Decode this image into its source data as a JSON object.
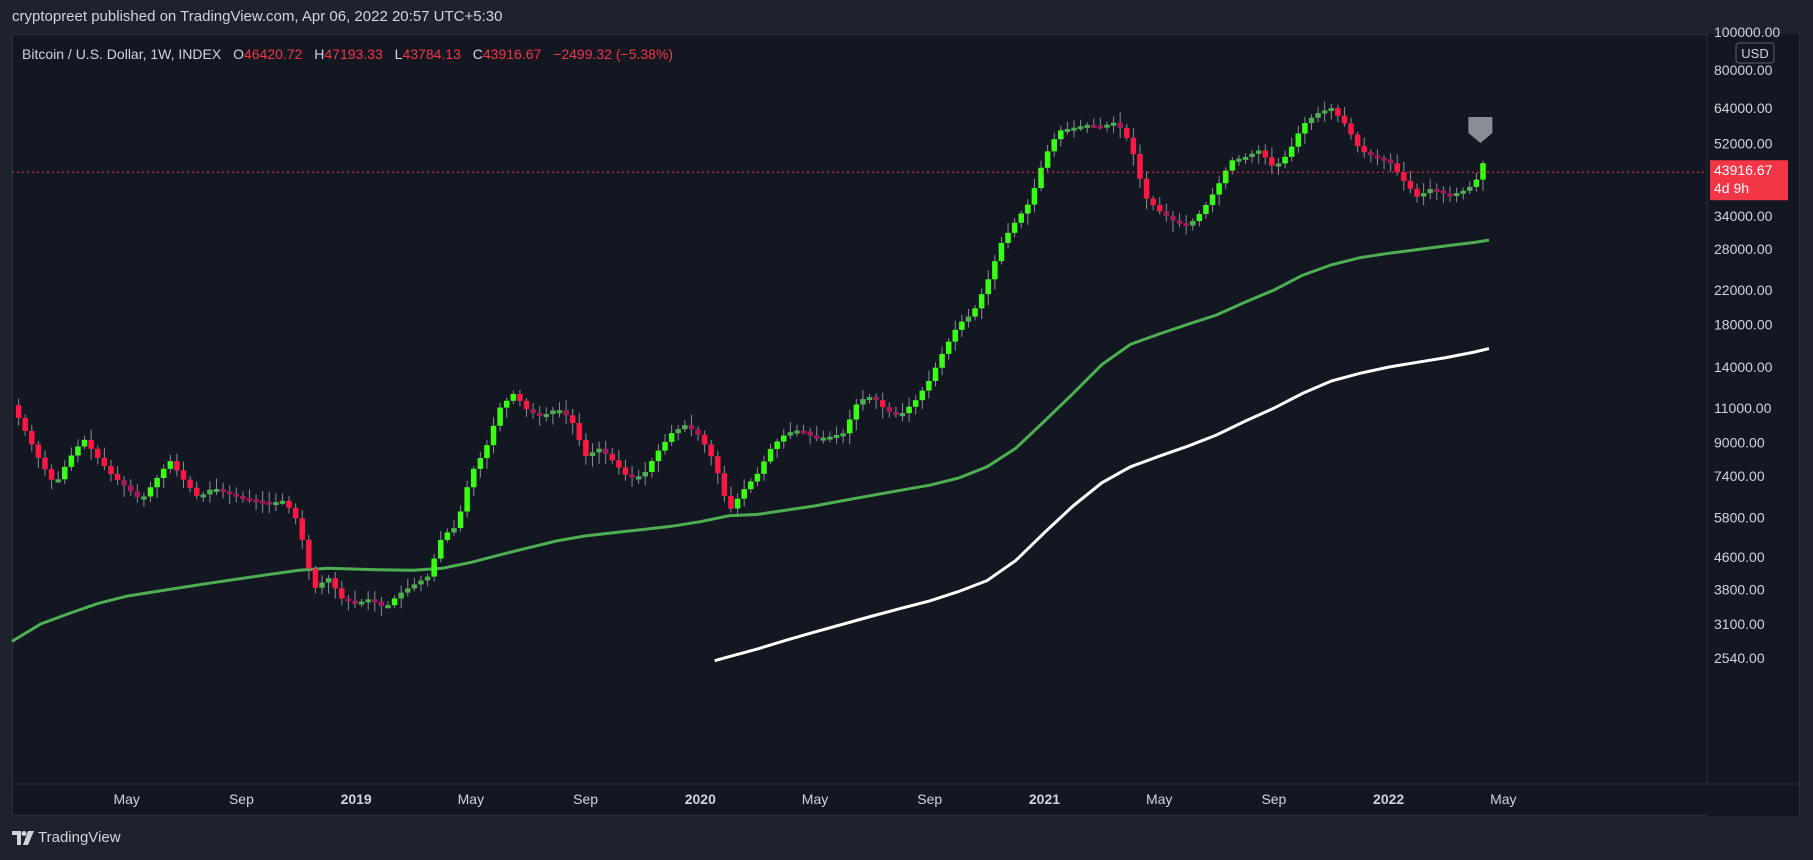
{
  "header": {
    "publish_text": "cryptopreet published on TradingView.com, Apr 06, 2022 20:57 UTC+5:30"
  },
  "legend": {
    "symbol": "Bitcoin / U.S. Dollar, 1W, INDEX",
    "open_label": "O",
    "open_value": "46420.72",
    "high_label": "H",
    "high_value": "47193.33",
    "low_label": "L",
    "low_value": "43784.13",
    "close_label": "C",
    "close_value": "43916.67",
    "change": "−2499.32 (−5.38%)"
  },
  "footer": {
    "brand": "TradingView"
  },
  "colors": {
    "background": "#131722",
    "up": "#4caf50",
    "up_bright": "#39ff14",
    "down": "#ff1744",
    "down_dim": "#a3195b",
    "ma_green": "#4caf50",
    "ma_white": "#ffffff",
    "price_label": "#f23645"
  },
  "chart_data": {
    "type": "candlestick",
    "title": "Bitcoin / U.S. Dollar, 1W, INDEX",
    "y_scale": "log",
    "currency": "USD",
    "y_ticks": [
      2540,
      3100,
      3800,
      4600,
      5800,
      7400,
      9000,
      11000,
      14000,
      18000,
      22000,
      28000,
      34000,
      52000,
      64000,
      80000,
      100000
    ],
    "y_tick_labels": [
      "2540.00",
      "3100.00",
      "3800.00",
      "4600.00",
      "5800.00",
      "7400.00",
      "9000.00",
      "11000.00",
      "14000.00",
      "18000.00",
      "22000.00",
      "28000.00",
      "34000.00",
      "52000.00",
      "64000.00",
      "80000.00",
      "100000.00"
    ],
    "x_tick_labels": [
      {
        "label": "May",
        "t": 4.0,
        "bold": false
      },
      {
        "label": "Sep",
        "t": 8.0,
        "bold": false
      },
      {
        "label": "2019",
        "t": 12.0,
        "bold": true
      },
      {
        "label": "May",
        "t": 16.0,
        "bold": false
      },
      {
        "label": "Sep",
        "t": 20.0,
        "bold": false
      },
      {
        "label": "2020",
        "t": 24.0,
        "bold": true
      },
      {
        "label": "May",
        "t": 28.0,
        "bold": false
      },
      {
        "label": "Sep",
        "t": 32.0,
        "bold": false
      },
      {
        "label": "2021",
        "t": 36.0,
        "bold": true
      },
      {
        "label": "May",
        "t": 40.0,
        "bold": false
      },
      {
        "label": "Sep",
        "t": 44.0,
        "bold": false
      },
      {
        "label": "2022",
        "t": 48.0,
        "bold": true
      },
      {
        "label": "May",
        "t": 52.0,
        "bold": false
      }
    ],
    "last_price": "43916.67",
    "countdown": "4d 9h",
    "price_path": [
      [
        0.0,
        11200
      ],
      [
        0.5,
        9500
      ],
      [
        1.0,
        8000
      ],
      [
        1.5,
        7000
      ],
      [
        2.0,
        8200
      ],
      [
        2.5,
        9200
      ],
      [
        3.0,
        8200
      ],
      [
        3.5,
        7400
      ],
      [
        4.0,
        6900
      ],
      [
        4.5,
        6400
      ],
      [
        5.0,
        7200
      ],
      [
        5.5,
        8100
      ],
      [
        6.0,
        7200
      ],
      [
        6.5,
        6500
      ],
      [
        7.0,
        6900
      ],
      [
        8.0,
        6500
      ],
      [
        9.0,
        6300
      ],
      [
        9.5,
        6400
      ],
      [
        10.0,
        5600
      ],
      [
        10.3,
        4400
      ],
      [
        10.6,
        3800
      ],
      [
        11.0,
        4100
      ],
      [
        11.5,
        3600
      ],
      [
        12.0,
        3500
      ],
      [
        12.5,
        3600
      ],
      [
        13.0,
        3400
      ],
      [
        13.5,
        3700
      ],
      [
        14.0,
        3900
      ],
      [
        14.5,
        4100
      ],
      [
        15.0,
        5200
      ],
      [
        15.5,
        5500
      ],
      [
        16.0,
        7500
      ],
      [
        16.5,
        8600
      ],
      [
        17.0,
        11000
      ],
      [
        17.5,
        12000
      ],
      [
        18.0,
        10800
      ],
      [
        18.5,
        10500
      ],
      [
        19.0,
        11000
      ],
      [
        19.5,
        10300
      ],
      [
        20.0,
        8300
      ],
      [
        20.5,
        8700
      ],
      [
        21.0,
        8000
      ],
      [
        21.5,
        7300
      ],
      [
        22.0,
        7400
      ],
      [
        22.5,
        8500
      ],
      [
        23.0,
        9500
      ],
      [
        23.5,
        10000
      ],
      [
        24.0,
        9300
      ],
      [
        24.5,
        8000
      ],
      [
        25.0,
        6000
      ],
      [
        25.5,
        6800
      ],
      [
        26.0,
        7500
      ],
      [
        26.5,
        8800
      ],
      [
        27.0,
        9500
      ],
      [
        27.5,
        9700
      ],
      [
        28.0,
        9200
      ],
      [
        28.5,
        9300
      ],
      [
        29.0,
        9500
      ],
      [
        29.5,
        11500
      ],
      [
        30.0,
        11800
      ],
      [
        30.5,
        10800
      ],
      [
        31.0,
        10600
      ],
      [
        31.5,
        11500
      ],
      [
        32.0,
        13000
      ],
      [
        32.5,
        15500
      ],
      [
        33.0,
        18000
      ],
      [
        33.5,
        19200
      ],
      [
        34.0,
        23000
      ],
      [
        34.5,
        29000
      ],
      [
        35.0,
        33000
      ],
      [
        35.5,
        37000
      ],
      [
        36.0,
        48000
      ],
      [
        36.5,
        56000
      ],
      [
        37.0,
        57000
      ],
      [
        37.5,
        58000
      ],
      [
        38.0,
        57500
      ],
      [
        38.5,
        59000
      ],
      [
        39.0,
        52000
      ],
      [
        39.5,
        38000
      ],
      [
        40.0,
        35000
      ],
      [
        40.5,
        33000
      ],
      [
        41.0,
        32000
      ],
      [
        41.5,
        35000
      ],
      [
        42.0,
        40000
      ],
      [
        42.5,
        47000
      ],
      [
        43.0,
        48000
      ],
      [
        43.5,
        50000
      ],
      [
        44.0,
        45000
      ],
      [
        44.5,
        49000
      ],
      [
        45.0,
        58000
      ],
      [
        45.5,
        62000
      ],
      [
        46.0,
        64000
      ],
      [
        46.5,
        58000
      ],
      [
        47.0,
        50000
      ],
      [
        47.5,
        48000
      ],
      [
        48.0,
        47000
      ],
      [
        48.5,
        42000
      ],
      [
        49.0,
        38000
      ],
      [
        49.5,
        40000
      ],
      [
        50.0,
        38500
      ],
      [
        50.5,
        39000
      ],
      [
        51.0,
        41000
      ],
      [
        51.3,
        46500
      ],
      [
        51.5,
        43916.67
      ]
    ],
    "ma_green": [
      [
        0.0,
        2800
      ],
      [
        1.0,
        3100
      ],
      [
        2.0,
        3300
      ],
      [
        3.0,
        3500
      ],
      [
        4.0,
        3650
      ],
      [
        5.0,
        3750
      ],
      [
        6.0,
        3850
      ],
      [
        7.0,
        3950
      ],
      [
        8.0,
        4050
      ],
      [
        9.0,
        4150
      ],
      [
        10.0,
        4250
      ],
      [
        11.0,
        4300
      ],
      [
        12.0,
        4280
      ],
      [
        13.0,
        4260
      ],
      [
        14.0,
        4250
      ],
      [
        15.0,
        4300
      ],
      [
        16.0,
        4450
      ],
      [
        17.0,
        4650
      ],
      [
        18.0,
        4850
      ],
      [
        19.0,
        5050
      ],
      [
        20.0,
        5200
      ],
      [
        21.0,
        5300
      ],
      [
        22.0,
        5400
      ],
      [
        23.0,
        5500
      ],
      [
        24.0,
        5650
      ],
      [
        25.0,
        5850
      ],
      [
        26.0,
        5900
      ],
      [
        27.0,
        6050
      ],
      [
        28.0,
        6200
      ],
      [
        29.0,
        6400
      ],
      [
        30.0,
        6600
      ],
      [
        31.0,
        6800
      ],
      [
        32.0,
        7000
      ],
      [
        33.0,
        7300
      ],
      [
        34.0,
        7800
      ],
      [
        35.0,
        8700
      ],
      [
        36.0,
        10200
      ],
      [
        37.0,
        12000
      ],
      [
        38.0,
        14200
      ],
      [
        39.0,
        16000
      ],
      [
        40.0,
        17000
      ],
      [
        41.0,
        18000
      ],
      [
        42.0,
        19000
      ],
      [
        43.0,
        20500
      ],
      [
        44.0,
        22000
      ],
      [
        45.0,
        24000
      ],
      [
        46.0,
        25500
      ],
      [
        47.0,
        26600
      ],
      [
        48.0,
        27300
      ],
      [
        49.0,
        27900
      ],
      [
        50.0,
        28500
      ],
      [
        51.0,
        29100
      ],
      [
        51.5,
        29500
      ]
    ],
    "ma_white": [
      [
        24.5,
        2500
      ],
      [
        25.0,
        2560
      ],
      [
        26.0,
        2680
      ],
      [
        27.0,
        2820
      ],
      [
        28.0,
        2960
      ],
      [
        29.0,
        3100
      ],
      [
        30.0,
        3250
      ],
      [
        31.0,
        3400
      ],
      [
        32.0,
        3550
      ],
      [
        33.0,
        3750
      ],
      [
        34.0,
        4000
      ],
      [
        35.0,
        4500
      ],
      [
        36.0,
        5300
      ],
      [
        37.0,
        6200
      ],
      [
        38.0,
        7100
      ],
      [
        39.0,
        7800
      ],
      [
        40.0,
        8300
      ],
      [
        41.0,
        8800
      ],
      [
        42.0,
        9400
      ],
      [
        43.0,
        10200
      ],
      [
        44.0,
        11000
      ],
      [
        45.0,
        12000
      ],
      [
        46.0,
        12900
      ],
      [
        47.0,
        13500
      ],
      [
        48.0,
        14000
      ],
      [
        49.0,
        14400
      ],
      [
        50.0,
        14800
      ],
      [
        51.0,
        15300
      ],
      [
        51.5,
        15600
      ]
    ]
  }
}
